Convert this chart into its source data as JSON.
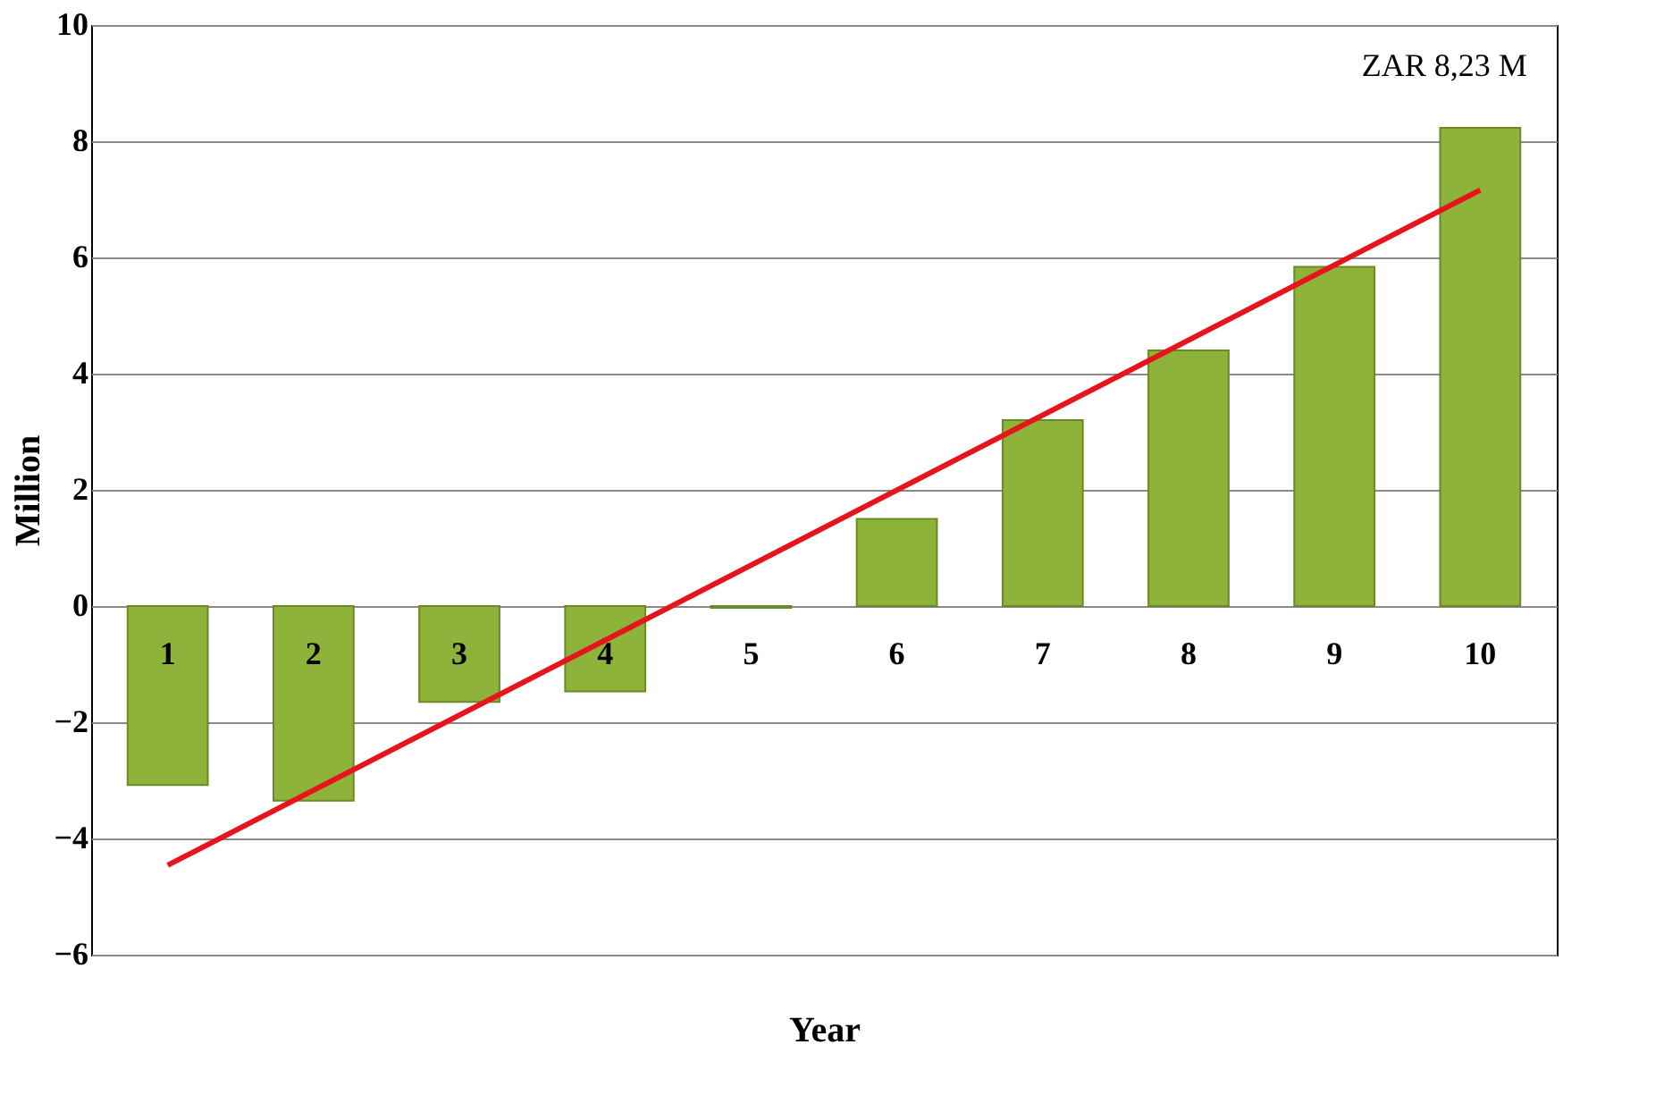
{
  "chart_data": {
    "type": "bar",
    "xlabel": "Year",
    "ylabel": "Million",
    "categories": [
      "1",
      "2",
      "3",
      "4",
      "5",
      "6",
      "7",
      "8",
      "9",
      "10"
    ],
    "series": [
      {
        "color": "#8db33a",
        "values": [
          -3.08,
          -3.35,
          -1.65,
          -1.47,
          -0.03,
          1.5,
          3.2,
          4.4,
          5.84,
          8.23
        ]
      },
      {
        "type": "line",
        "color": "#e8141c",
        "x": [
          "1",
          "10"
        ],
        "values": [
          -4.46,
          7.16
        ]
      }
    ],
    "ylim": [
      -6,
      10
    ],
    "yticks": [
      -6,
      -4,
      -2,
      0,
      2,
      4,
      6,
      8,
      10
    ],
    "grid": "y",
    "annotations": [
      {
        "text": "ZAR 8,23 M",
        "x": "10",
        "y": 8.23
      }
    ]
  }
}
